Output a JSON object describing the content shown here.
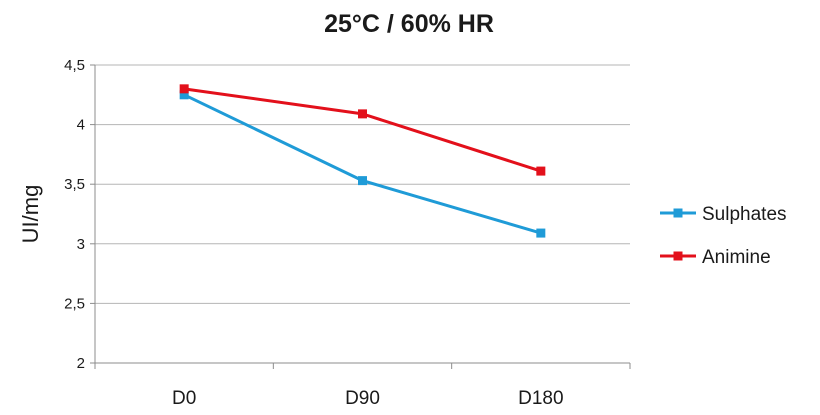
{
  "chart_data": {
    "type": "line",
    "title": "25°C / 60% HR",
    "xlabel": "",
    "ylabel": "UI/mg",
    "categories": [
      "D0",
      "D90",
      "D180"
    ],
    "ylim": [
      2,
      4.5
    ],
    "yticks": [
      "2",
      "2,5",
      "3",
      "3,5",
      "4",
      "4,5"
    ],
    "grid": true,
    "legend_position": "right",
    "series": [
      {
        "name": "Sulphates",
        "color": "#1f9bd7",
        "values": [
          4.25,
          3.53,
          3.09
        ]
      },
      {
        "name": "Animine",
        "color": "#e3101b",
        "values": [
          4.3,
          4.09,
          3.61
        ]
      }
    ]
  }
}
